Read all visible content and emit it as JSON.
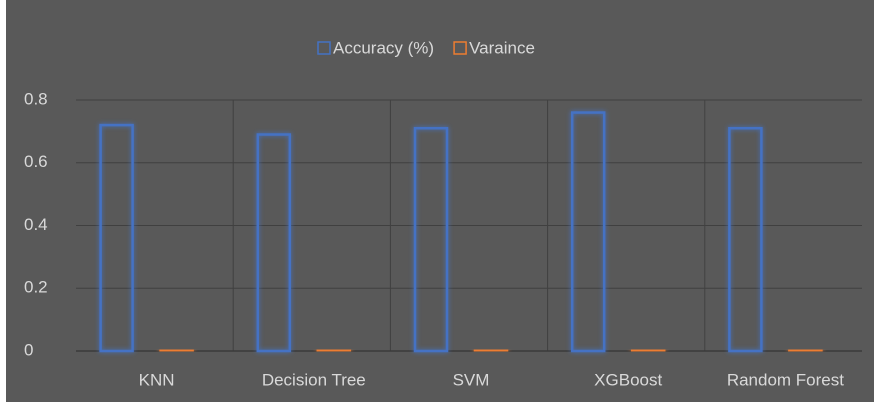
{
  "chart_data": {
    "type": "bar",
    "categories": [
      "KNN",
      "Decision Tree",
      "SVM",
      "XGBoost",
      "Random Forest"
    ],
    "series": [
      {
        "name": "Accuracy (%)",
        "color": "#4472c4",
        "values": [
          0.72,
          0.69,
          0.71,
          0.76,
          0.71
        ]
      },
      {
        "name": "Varaince",
        "color": "#ed7d31",
        "values": [
          0.004,
          0.004,
          0.004,
          0.004,
          0.004
        ]
      }
    ],
    "ylim": [
      0,
      0.8
    ],
    "yticks": [
      0,
      0.2,
      0.4,
      0.6,
      0.8
    ],
    "grid": true,
    "legend": "top"
  }
}
